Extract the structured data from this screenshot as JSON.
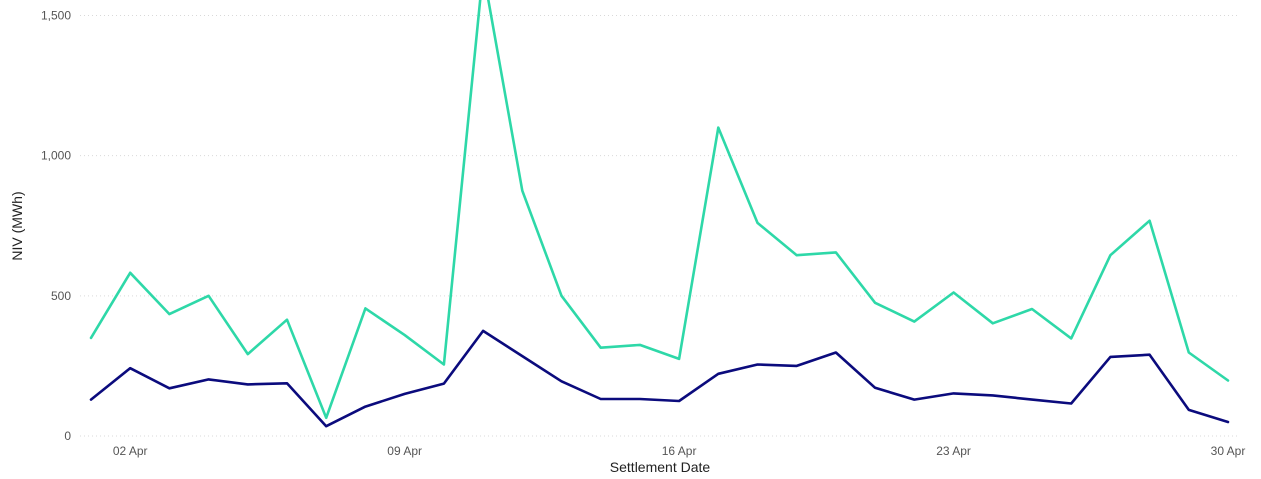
{
  "chart_data": {
    "type": "line",
    "title": "",
    "xlabel": "Settlement Date",
    "ylabel": "NIV (MWh)",
    "x_tick_labels": [
      "02 Apr",
      "09 Apr",
      "16 Apr",
      "23 Apr",
      "30 Apr"
    ],
    "x_tick_days": [
      2,
      9,
      16,
      23,
      30
    ],
    "y_ticks": [
      0,
      500,
      1000,
      1500
    ],
    "y_tick_labels": [
      "0",
      "500",
      "1,000",
      "1,500"
    ],
    "ylim": [
      0,
      1500
    ],
    "grid": "horizontal dotted",
    "x": [
      1,
      2,
      3,
      4,
      5,
      6,
      7,
      8,
      9,
      10,
      11,
      12,
      13,
      14,
      15,
      16,
      17,
      18,
      19,
      20,
      21,
      22,
      23,
      24,
      25,
      26,
      27,
      28,
      29,
      30
    ],
    "series": [
      {
        "color": "#2ed8a8",
        "values": [
          350,
          582,
          435,
          500,
          292,
          415,
          65,
          455,
          360,
          255,
          1660,
          875,
          500,
          315,
          325,
          275,
          1100,
          760,
          645,
          655,
          475,
          408,
          512,
          402,
          453,
          348,
          645,
          768,
          298,
          198
        ]
      },
      {
        "color": "#0b0b7d",
        "values": [
          130,
          242,
          170,
          202,
          184,
          188,
          35,
          105,
          150,
          187,
          375,
          285,
          195,
          132,
          132,
          125,
          222,
          255,
          250,
          298,
          172,
          130,
          152,
          145,
          130,
          116,
          282,
          290,
          93,
          50
        ]
      }
    ]
  }
}
